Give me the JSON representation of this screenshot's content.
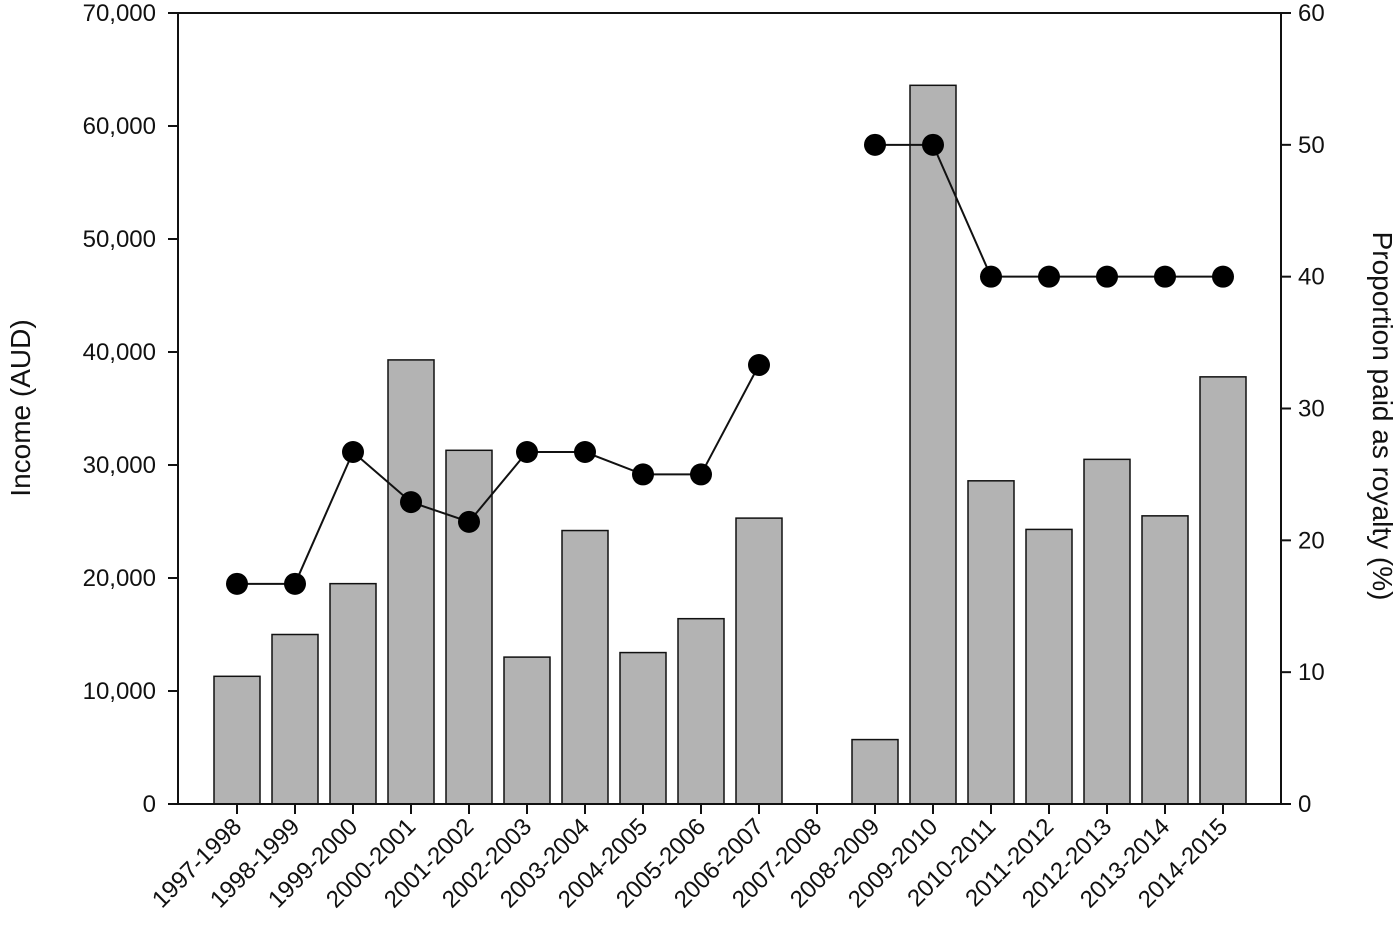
{
  "chart_data": {
    "type": "bar",
    "categories": [
      "1997-1998",
      "1998-1999",
      "1999-2000",
      "2000-2001",
      "2001-2002",
      "2002-2003",
      "2003-2004",
      "2004-2005",
      "2005-2006",
      "2006-2007",
      "2007-2008",
      "2008-2009",
      "2009-2010",
      "2010-2011",
      "2011-2012",
      "2012-2013",
      "2013-2014",
      "2014-2015"
    ],
    "series": [
      {
        "type": "bar",
        "axis": "left",
        "color": "#b3b3b3",
        "values": [
          11300,
          15000,
          19500,
          39300,
          31300,
          13000,
          24200,
          13400,
          16400,
          25300,
          0,
          5700,
          63600,
          28600,
          24300,
          30500,
          25500,
          37800
        ]
      },
      {
        "type": "line",
        "axis": "right",
        "color": "#000000",
        "marker": "circle",
        "values": [
          16.7,
          16.7,
          26.7,
          22.9,
          21.4,
          26.7,
          26.7,
          25.0,
          25.0,
          33.3,
          null,
          50,
          50,
          40,
          40,
          40,
          40,
          40
        ]
      }
    ],
    "ylabel": "Income (AUD)",
    "ylim": [
      0,
      70000
    ],
    "yticks": [
      0,
      10000,
      20000,
      30000,
      40000,
      50000,
      60000,
      70000
    ],
    "ytick_labels": [
      "0",
      "10,000",
      "20,000",
      "30,000",
      "40,000",
      "50,000",
      "60,000",
      "70,000"
    ],
    "y2label": "Proportion paid as royalty (%)",
    "y2lim": [
      0,
      60
    ],
    "y2ticks": [
      0,
      10,
      20,
      30,
      40,
      50,
      60
    ],
    "y2tick_labels": [
      "0",
      "10",
      "20",
      "30",
      "40",
      "50",
      "60"
    ],
    "grid": false,
    "legend": "none"
  }
}
